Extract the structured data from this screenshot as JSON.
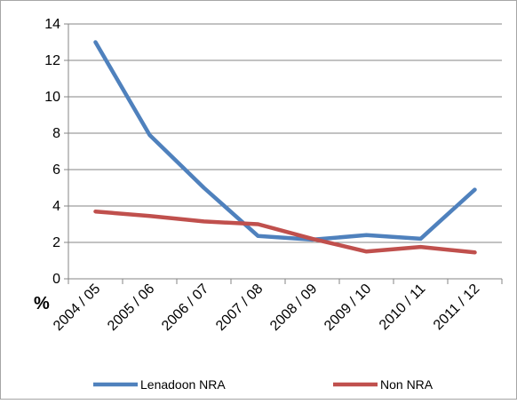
{
  "chart_data": {
    "type": "line",
    "title": "",
    "xlabel": "",
    "ylabel": "%",
    "ylim": [
      0,
      14
    ],
    "yticks": [
      0,
      2,
      4,
      6,
      8,
      10,
      12,
      14
    ],
    "grid": true,
    "legend_position": "bottom",
    "categories": [
      "2004 / 05",
      "2005 / 06",
      "2006 / 07",
      "2007 / 08",
      "2008 / 09",
      "2009 / 10",
      "2010 / 11",
      "2011 / 12"
    ],
    "series": [
      {
        "name": "Lenadoon NRA",
        "color": "#4f81bd",
        "values": [
          13.0,
          7.9,
          5.0,
          2.35,
          2.15,
          2.4,
          2.2,
          4.9
        ]
      },
      {
        "name": "Non NRA",
        "color": "#c0504d",
        "values": [
          3.7,
          3.45,
          3.15,
          3.0,
          2.2,
          1.5,
          1.75,
          1.45
        ]
      }
    ]
  }
}
